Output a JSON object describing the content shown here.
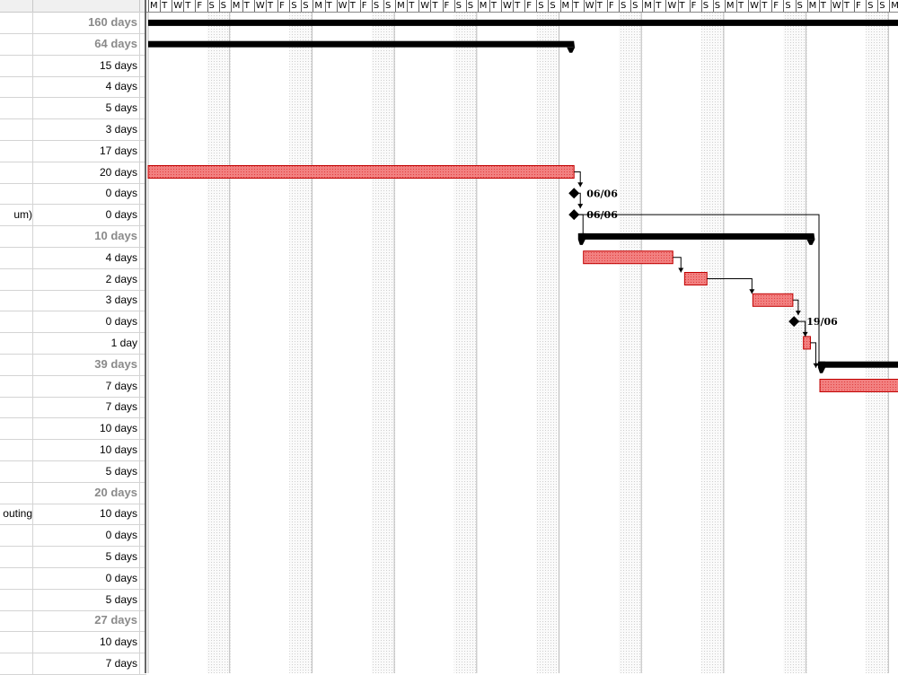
{
  "colors": {
    "task_bar": "#f28080",
    "task_bar_border": "#c00000",
    "summary_bar": "#000000",
    "milestone": "#000000",
    "weekend_shade": "#eeeeee",
    "grid_line": "#d4d4d4",
    "summary_text": "#8a8a8a"
  },
  "table": {
    "rows": [
      {
        "name": "",
        "duration": "160 days",
        "summary": true
      },
      {
        "name": "",
        "duration": "64 days",
        "summary": true
      },
      {
        "name": "",
        "duration": "15 days",
        "summary": false
      },
      {
        "name": "",
        "duration": "4 days",
        "summary": false
      },
      {
        "name": "",
        "duration": "5 days",
        "summary": false
      },
      {
        "name": "",
        "duration": "3 days",
        "summary": false
      },
      {
        "name": "",
        "duration": "17 days",
        "summary": false
      },
      {
        "name": "",
        "duration": "20 days",
        "summary": false
      },
      {
        "name": "",
        "duration": "0 days",
        "summary": false
      },
      {
        "name": "um)",
        "duration": "0 days",
        "summary": false
      },
      {
        "name": "",
        "duration": "10 days",
        "summary": true
      },
      {
        "name": "",
        "duration": "4 days",
        "summary": false
      },
      {
        "name": "",
        "duration": "2 days",
        "summary": false
      },
      {
        "name": "",
        "duration": "3 days",
        "summary": false
      },
      {
        "name": "",
        "duration": "0 days",
        "summary": false
      },
      {
        "name": "",
        "duration": "1 day",
        "summary": false
      },
      {
        "name": "",
        "duration": "39 days",
        "summary": true
      },
      {
        "name": "",
        "duration": "7 days",
        "summary": false
      },
      {
        "name": "",
        "duration": "7 days",
        "summary": false
      },
      {
        "name": "",
        "duration": "10 days",
        "summary": false
      },
      {
        "name": "",
        "duration": "10 days",
        "summary": false
      },
      {
        "name": "",
        "duration": "5 days",
        "summary": false
      },
      {
        "name": "",
        "duration": "20 days",
        "summary": true
      },
      {
        "name": "outing",
        "duration": "10 days",
        "summary": false
      },
      {
        "name": "",
        "duration": "0 days",
        "summary": false
      },
      {
        "name": "",
        "duration": "5 days",
        "summary": false
      },
      {
        "name": "",
        "duration": "0 days",
        "summary": false
      },
      {
        "name": "",
        "duration": "5 days",
        "summary": false
      },
      {
        "name": "",
        "duration": "27 days",
        "summary": true
      },
      {
        "name": "",
        "duration": "10 days",
        "summary": false
      },
      {
        "name": "",
        "duration": "7 days",
        "summary": false
      }
    ]
  },
  "timescale": {
    "day_letters": [
      "M",
      "T",
      "W",
      "T",
      "F",
      "S",
      "S"
    ],
    "visible_days": 64
  },
  "gantt": {
    "bars": [
      {
        "row": 0,
        "type": "summary",
        "start_day": 0,
        "end_day": 64
      },
      {
        "row": 1,
        "type": "summary",
        "start_day": 0,
        "end_day": 36.2
      },
      {
        "row": 7,
        "type": "task",
        "start_day": 0,
        "end_day": 36.2
      },
      {
        "row": 10,
        "type": "summary",
        "start_day": 36.7,
        "end_day": 56.6
      },
      {
        "row": 11,
        "type": "task",
        "start_day": 37.0,
        "end_day": 44.6
      },
      {
        "row": 12,
        "type": "task",
        "start_day": 45.6,
        "end_day": 47.5
      },
      {
        "row": 13,
        "type": "task",
        "start_day": 51.4,
        "end_day": 54.8
      },
      {
        "row": 15,
        "type": "task",
        "start_day": 55.7,
        "end_day": 56.3
      },
      {
        "row": 16,
        "type": "summary",
        "start_day": 57.1,
        "end_day": 64
      },
      {
        "row": 17,
        "type": "task",
        "start_day": 57.1,
        "end_day": 64
      }
    ],
    "milestones": [
      {
        "row": 8,
        "day": 36.2,
        "label": "06/06"
      },
      {
        "row": 9,
        "day": 36.2,
        "label": "06/06"
      },
      {
        "row": 14,
        "day": 54.9,
        "label": "19/06"
      }
    ]
  }
}
